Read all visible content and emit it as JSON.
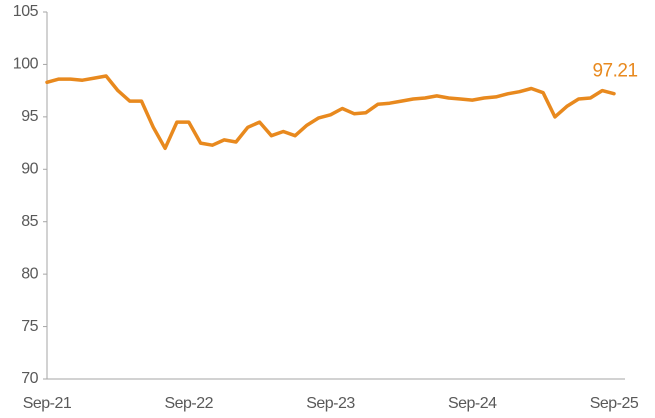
{
  "chart_data": {
    "type": "line",
    "categories": [
      "Sep-21",
      null,
      null,
      null,
      null,
      null,
      null,
      null,
      null,
      null,
      null,
      null,
      "Sep-22",
      null,
      null,
      null,
      null,
      null,
      null,
      null,
      null,
      null,
      null,
      null,
      "Sep-23",
      null,
      null,
      null,
      null,
      null,
      null,
      null,
      null,
      null,
      null,
      null,
      "Sep-24",
      null,
      null,
      null,
      null,
      null,
      null,
      null,
      null,
      null,
      null,
      null,
      "Sep-25"
    ],
    "values": [
      98.3,
      98.6,
      98.6,
      98.5,
      98.7,
      98.9,
      97.5,
      96.5,
      96.5,
      94,
      92,
      94.5,
      94.5,
      92.5,
      92.3,
      92.8,
      92.6,
      94,
      94.5,
      93.2,
      93.6,
      93.2,
      94.2,
      94.9,
      95.2,
      95.8,
      95.3,
      95.4,
      96.2,
      96.3,
      96.5,
      96.7,
      96.8,
      97,
      96.8,
      96.7,
      96.6,
      96.8,
      96.9,
      97.2,
      97.4,
      97.7,
      97.3,
      95,
      96,
      96.7,
      96.8,
      97.5,
      97.21
    ],
    "color": "#E8891E",
    "ylim": [
      70,
      105
    ],
    "yticks": [
      70,
      75,
      80,
      85,
      90,
      95,
      100,
      105
    ],
    "grid": false
  }
}
